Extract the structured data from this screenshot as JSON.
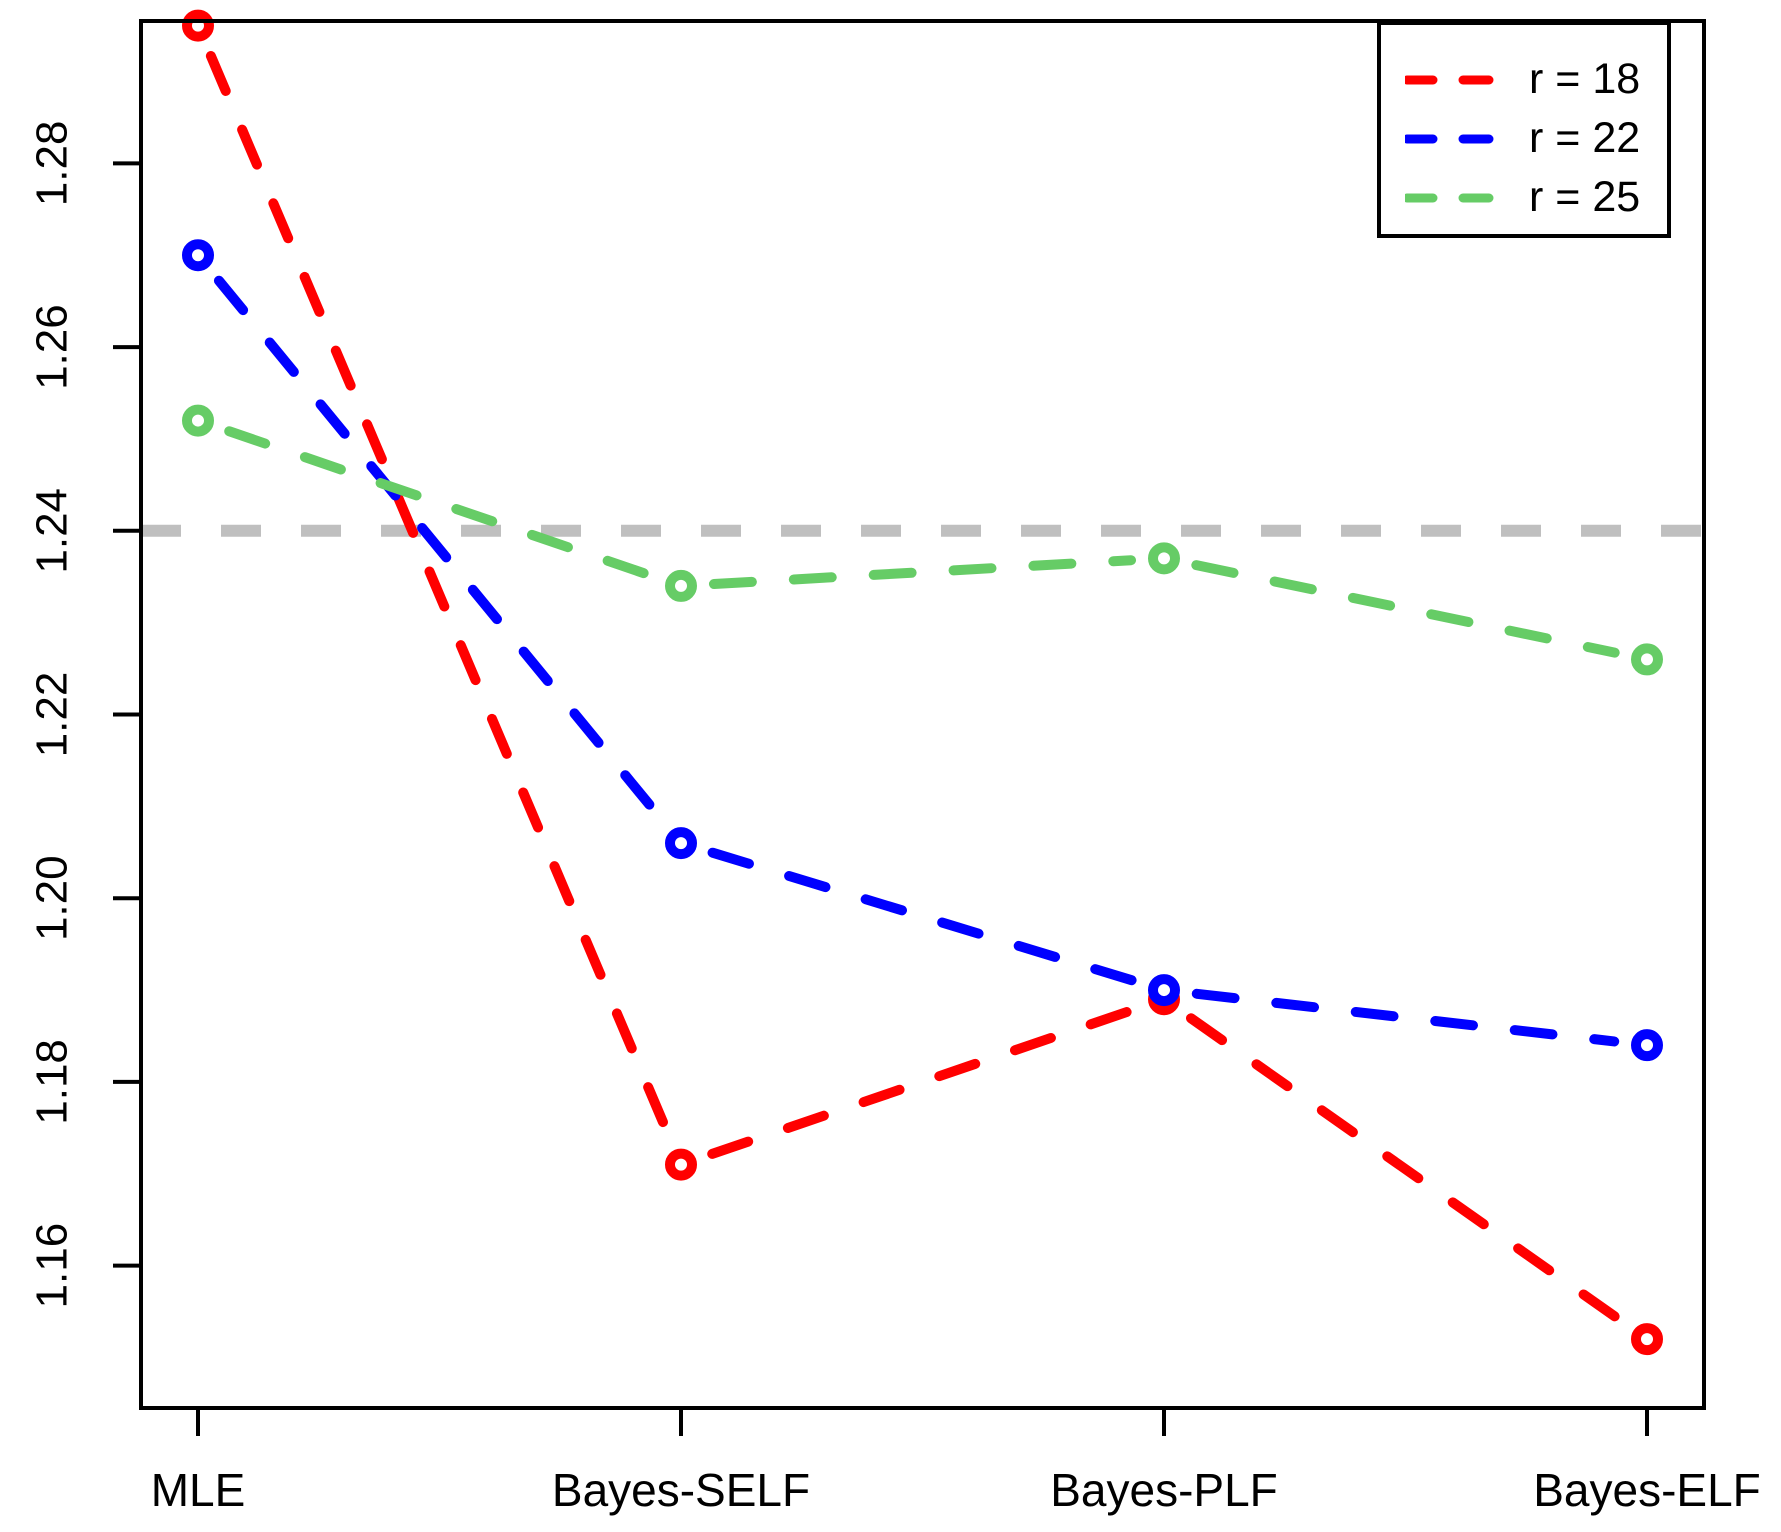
{
  "chart_data": {
    "type": "line",
    "title": "",
    "xlabel": "",
    "ylabel": "",
    "categories": [
      "MLE",
      "Bayes-SELF",
      "Bayes-PLF",
      "Bayes-ELF"
    ],
    "series": [
      {
        "name": "r = 18",
        "color": "#FF0000",
        "values": [
          1.295,
          1.171,
          1.189,
          1.152
        ]
      },
      {
        "name": "r = 22",
        "color": "#0000FF",
        "values": [
          1.27,
          1.206,
          1.19,
          1.184
        ]
      },
      {
        "name": "r = 25",
        "color": "#66CC66",
        "values": [
          1.252,
          1.234,
          1.237,
          1.226
        ]
      }
    ],
    "reference_line": {
      "value": 1.24,
      "color": "#BFBFBF",
      "style": "dashed"
    },
    "yticks": [
      1.16,
      1.18,
      1.2,
      1.22,
      1.24,
      1.26,
      1.28
    ],
    "ytick_labels": [
      "1.16",
      "1.18",
      "1.20",
      "1.22",
      "1.24",
      "1.26",
      "1.28"
    ],
    "ylim": [
      1.1445,
      1.2955
    ],
    "grid": false,
    "line_style": "dashed",
    "marker": "open-circle",
    "legend_position": "top-right",
    "axis_color": "#000000",
    "background_color": "#FFFFFF"
  },
  "legend": {
    "items": [
      {
        "label": "r = 18",
        "color": "#FF0000"
      },
      {
        "label": "r = 22",
        "color": "#0000FF"
      },
      {
        "label": "r = 25",
        "color": "#66CC66"
      }
    ]
  }
}
